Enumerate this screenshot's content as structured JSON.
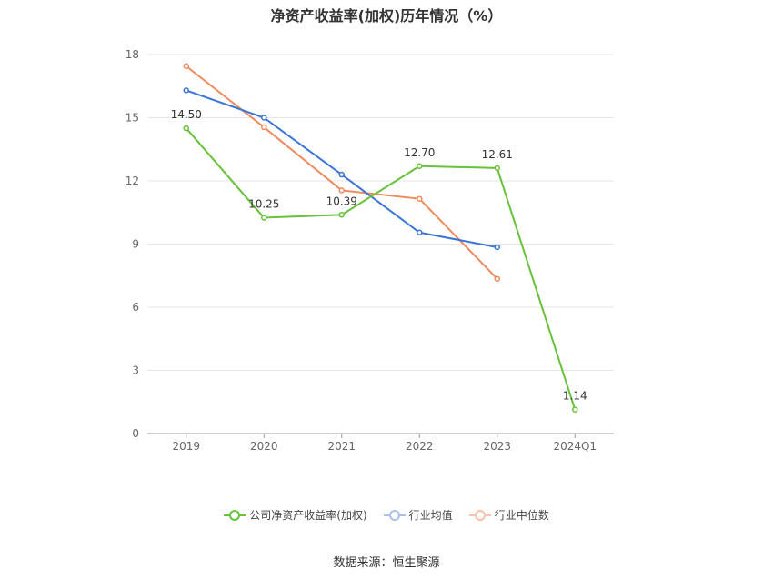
{
  "chart_data": {
    "type": "line",
    "title": "净资产收益率(加权)历年情况（%）",
    "categories": [
      "2019",
      "2020",
      "2021",
      "2022",
      "2023",
      "2024Q1"
    ],
    "ylim": [
      0,
      18
    ],
    "yticks": [
      "0",
      "3",
      "6",
      "9",
      "12",
      "15",
      "18"
    ],
    "grid": true,
    "legend_position": "bottom-center",
    "series": [
      {
        "name": "公司净资产收益率(加权)",
        "color": "#67c23a",
        "values": [
          14.5,
          10.25,
          10.39,
          12.7,
          12.61,
          1.14
        ],
        "labels": [
          "14.50",
          "10.25",
          "10.39",
          "12.70",
          "12.61",
          "1.14"
        ]
      },
      {
        "name": "行业均值",
        "color": "#3a74d8",
        "values": [
          16.3,
          15.0,
          12.3,
          9.55,
          8.85,
          null
        ]
      },
      {
        "name": "行业中位数",
        "color": "#f08a5d",
        "values": [
          17.45,
          14.55,
          11.55,
          11.15,
          7.35,
          null
        ]
      }
    ]
  },
  "source": "数据来源：恒生聚源"
}
